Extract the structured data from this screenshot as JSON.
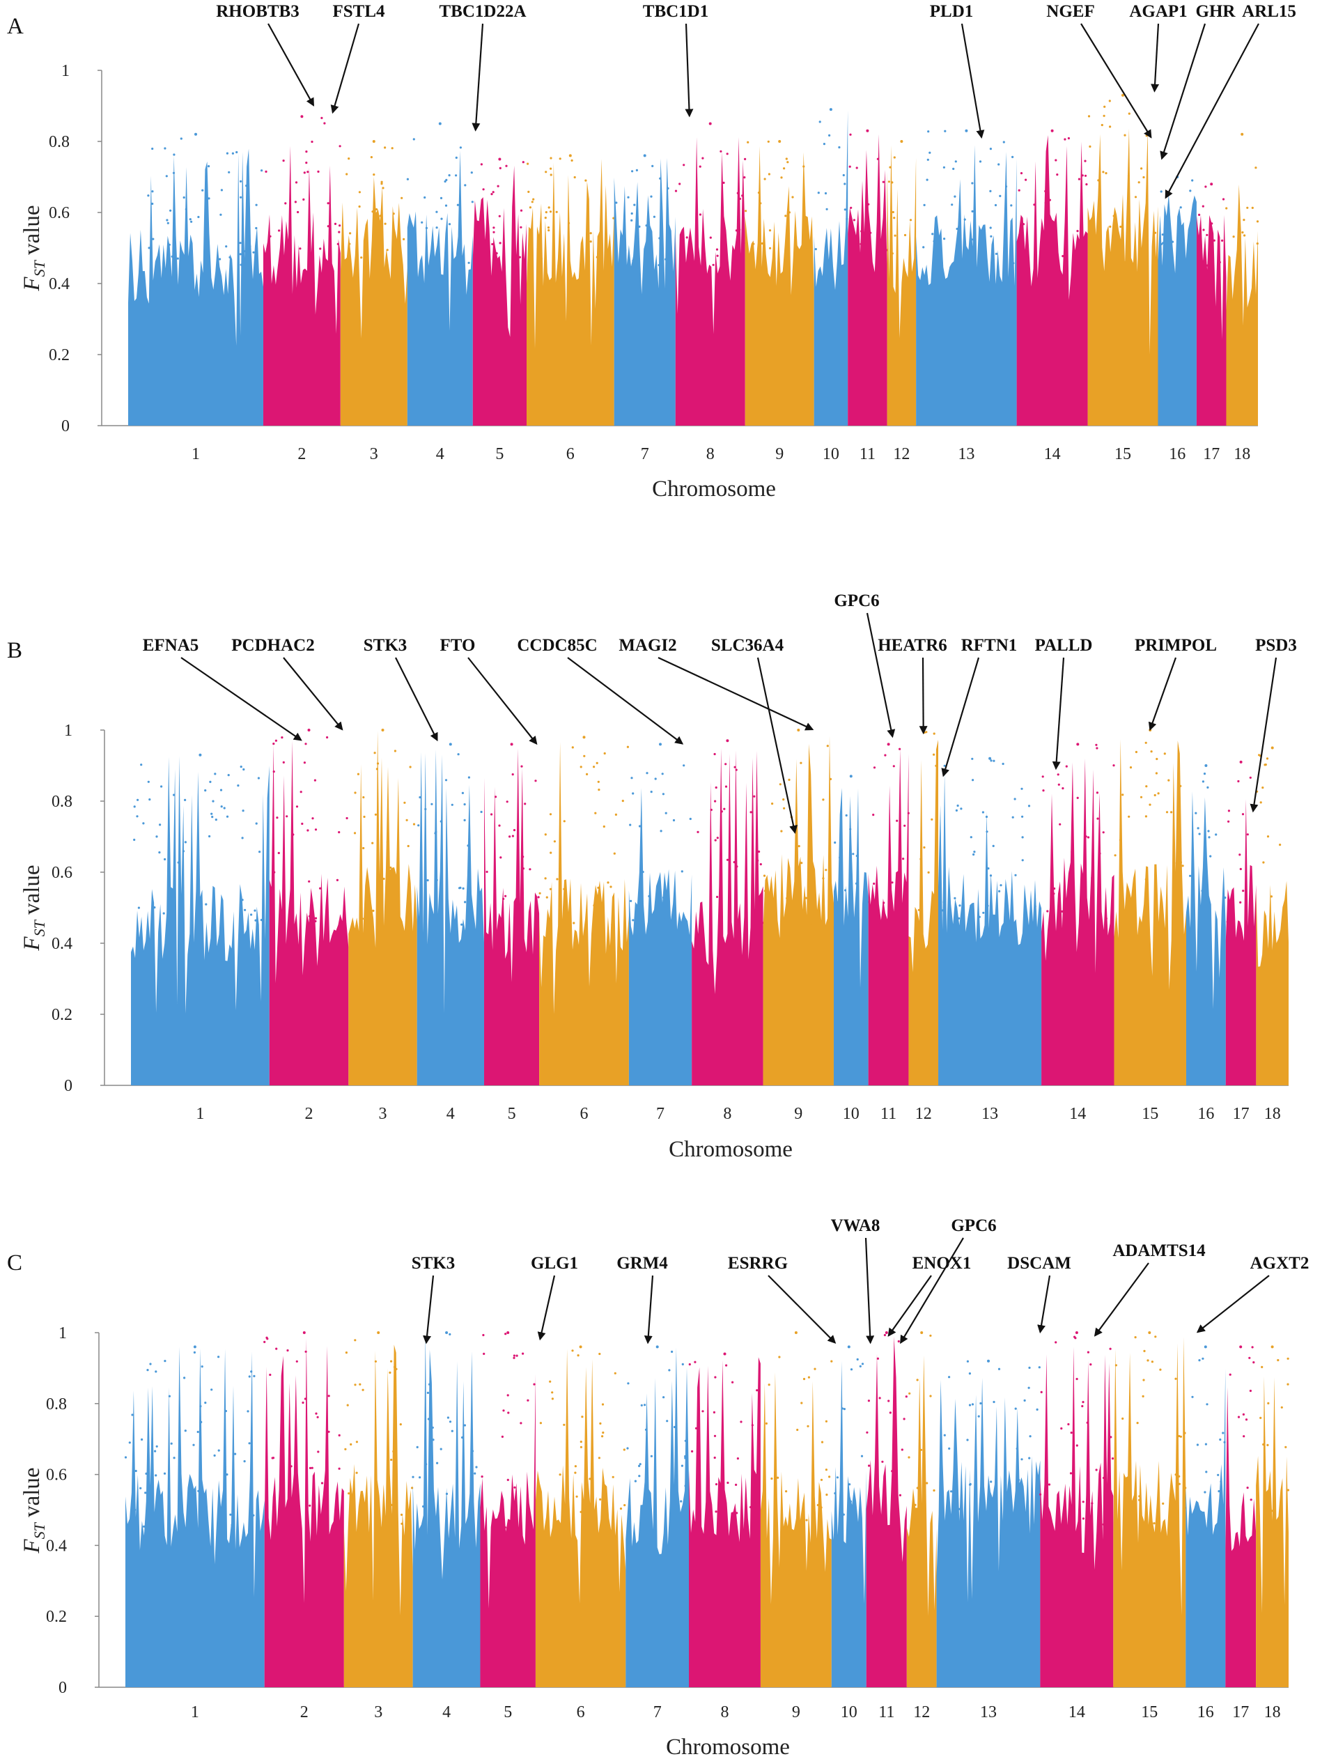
{
  "chart_data": [
    {
      "type": "scatter",
      "panel": "A",
      "xlabel": "Chromosome",
      "ylabel_main": "F",
      "ylabel_sub": "ST",
      "ylabel_tail": " value",
      "ylim": [
        0,
        1
      ],
      "yticks": [
        "0",
        "0.2",
        "0.4",
        "0.6",
        "0.8",
        "1"
      ],
      "chromosomes": [
        "1",
        "2",
        "3",
        "4",
        "5",
        "6",
        "7",
        "8",
        "9",
        "10",
        "11",
        "12",
        "13",
        "14",
        "15",
        "16",
        "17",
        "18"
      ],
      "chrom_lengths": [
        19.6,
        11.2,
        9.7,
        9.5,
        7.8,
        12.7,
        8.9,
        10.1,
        10.0,
        4.9,
        5.7,
        4.2,
        14.6,
        10.3,
        10.2,
        5.6,
        4.3,
        4.6
      ],
      "colors": [
        "#4a98d8",
        "#dc1673",
        "#e8a126"
      ],
      "peaks": [
        0.82,
        0.87,
        0.8,
        0.85,
        0.75,
        0.76,
        0.76,
        0.85,
        0.8,
        0.89,
        0.83,
        0.8,
        0.83,
        0.83,
        0.93,
        0.7,
        0.68,
        0.82
      ],
      "annotations": [
        {
          "gene": "RHOBTB3",
          "chrom": 2,
          "pos": 0.65,
          "y": 0.89
        },
        {
          "gene": "FSTL4",
          "chrom": 2,
          "pos": 0.9,
          "y": 0.87
        },
        {
          "gene": "TBC1D22A",
          "chrom": 5,
          "pos": 0.05,
          "y": 0.82
        },
        {
          "gene": "TBC1D1",
          "chrom": 8,
          "pos": 0.2,
          "y": 0.86
        },
        {
          "gene": "PLD1",
          "chrom": 13,
          "pos": 0.65,
          "y": 0.8
        },
        {
          "gene": "NGEF",
          "chrom": 15,
          "pos": 0.9,
          "y": 0.8
        },
        {
          "gene": "AGAP1",
          "chrom": 15,
          "pos": 0.95,
          "y": 0.93
        },
        {
          "gene": "GHR",
          "chrom": 16,
          "pos": 0.1,
          "y": 0.74
        },
        {
          "gene": "ARL15",
          "chrom": 16,
          "pos": 0.2,
          "y": 0.63
        }
      ]
    },
    {
      "type": "scatter",
      "panel": "B",
      "xlabel": "Chromosome",
      "ylabel_main": "F",
      "ylabel_sub": "ST",
      "ylabel_tail": " value",
      "ylim": [
        0,
        1
      ],
      "yticks": [
        "0",
        "0.2",
        "0.4",
        "0.6",
        "0.8",
        "1"
      ],
      "chromosomes": [
        "1",
        "2",
        "3",
        "4",
        "5",
        "6",
        "7",
        "8",
        "9",
        "10",
        "11",
        "12",
        "13",
        "14",
        "15",
        "16",
        "17",
        "18"
      ],
      "chrom_lengths": [
        19.6,
        11.2,
        9.7,
        9.5,
        7.8,
        12.7,
        8.9,
        10.1,
        10.0,
        4.9,
        5.7,
        4.2,
        14.6,
        10.3,
        10.2,
        5.6,
        4.3,
        4.6
      ],
      "colors": [
        "#4a98d8",
        "#dc1673",
        "#e8a126"
      ],
      "peaks": [
        0.93,
        1.0,
        1.0,
        0.96,
        0.96,
        0.98,
        0.96,
        0.97,
        1.0,
        0.87,
        0.96,
        1.0,
        0.92,
        0.96,
        1.0,
        0.9,
        0.91,
        0.95
      ],
      "annotations": [
        {
          "gene": "EFNA5",
          "chrom": 2,
          "pos": 0.4,
          "y": 0.96
        },
        {
          "gene": "PCDHAC2",
          "chrom": 2,
          "pos": 0.92,
          "y": 0.99
        },
        {
          "gene": "STK3",
          "chrom": 4,
          "pos": 0.3,
          "y": 0.96
        },
        {
          "gene": "FTO",
          "chrom": 5,
          "pos": 0.95,
          "y": 0.95
        },
        {
          "gene": "CCDC85C",
          "chrom": 7,
          "pos": 0.85,
          "y": 0.95
        },
        {
          "gene": "MAGI2",
          "chrom": 9,
          "pos": 0.7,
          "y": 0.99
        },
        {
          "gene": "SLC36A4",
          "chrom": 9,
          "pos": 0.45,
          "y": 0.7
        },
        {
          "gene": "GPC6",
          "chrom": 11,
          "pos": 0.6,
          "y": 0.97
        },
        {
          "gene": "HEATR6",
          "chrom": 12,
          "pos": 0.5,
          "y": 0.98
        },
        {
          "gene": "RFTN1",
          "chrom": 13,
          "pos": 0.05,
          "y": 0.86
        },
        {
          "gene": "PALLD",
          "chrom": 14,
          "pos": 0.2,
          "y": 0.88
        },
        {
          "gene": "PRIMPOL",
          "chrom": 15,
          "pos": 0.5,
          "y": 0.99
        },
        {
          "gene": "PSD3",
          "chrom": 17,
          "pos": 0.9,
          "y": 0.76
        }
      ]
    },
    {
      "type": "scatter",
      "panel": "C",
      "xlabel": "Chromosome",
      "ylabel_main": "F",
      "ylabel_sub": "ST",
      "ylabel_tail": " value",
      "ylim": [
        0,
        1
      ],
      "yticks": [
        "0",
        "0.2",
        "0.4",
        "0.6",
        "0.8",
        "1"
      ],
      "chromosomes": [
        "1",
        "2",
        "3",
        "4",
        "5",
        "6",
        "7",
        "8",
        "9",
        "10",
        "11",
        "12",
        "13",
        "14",
        "15",
        "16",
        "17",
        "18"
      ],
      "chrom_lengths": [
        19.6,
        11.2,
        9.7,
        9.5,
        7.8,
        12.7,
        8.9,
        10.1,
        10.0,
        4.9,
        5.7,
        4.2,
        14.6,
        10.3,
        10.2,
        5.6,
        4.3,
        4.6
      ],
      "colors": [
        "#4a98d8",
        "#dc1673",
        "#e8a126"
      ],
      "peaks": [
        0.96,
        1.0,
        1.0,
        1.0,
        1.0,
        0.96,
        0.96,
        0.94,
        1.0,
        0.96,
        1.0,
        1.0,
        0.92,
        1.0,
        1.0,
        0.96,
        0.96,
        0.96
      ],
      "annotations": [
        {
          "gene": "STK3",
          "chrom": 4,
          "pos": 0.2,
          "y": 0.96
        },
        {
          "gene": "GLG1",
          "chrom": 6,
          "pos": 0.05,
          "y": 0.97
        },
        {
          "gene": "GRM4",
          "chrom": 7,
          "pos": 0.35,
          "y": 0.96
        },
        {
          "gene": "ESRRG",
          "chrom": 10,
          "pos": 0.1,
          "y": 0.96
        },
        {
          "gene": "VWA8",
          "chrom": 11,
          "pos": 0.1,
          "y": 0.96
        },
        {
          "gene": "ENOX1",
          "chrom": 11,
          "pos": 0.55,
          "y": 0.98
        },
        {
          "gene": "GPC6",
          "chrom": 11,
          "pos": 0.85,
          "y": 0.96
        },
        {
          "gene": "DSCAM",
          "chrom": 14,
          "pos": 0.0,
          "y": 0.99
        },
        {
          "gene": "ADAMTS14",
          "chrom": 14,
          "pos": 0.75,
          "y": 0.98
        },
        {
          "gene": "AGXT2",
          "chrom": 16,
          "pos": 0.3,
          "y": 0.99
        }
      ]
    }
  ]
}
